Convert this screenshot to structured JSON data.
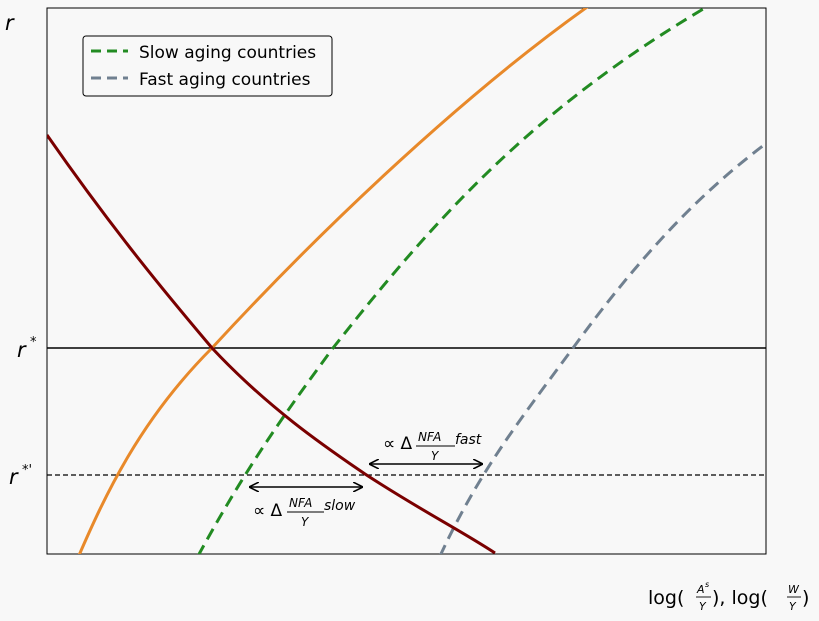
{
  "legend": {
    "slow": "Slow aging countries",
    "fast": "Fast aging countries"
  },
  "axes": {
    "y_label": "r",
    "x_label": {
      "prefix": "log(",
      "part1_num": "A",
      "part1_sup": "s",
      "den": "Y",
      "sep": "), log(",
      "part2_num": "W",
      "suffix": ")"
    },
    "r_star": {
      "base": "r",
      "sup": "*"
    },
    "r_star_prime": {
      "base": "r",
      "sup": "*'"
    }
  },
  "annotations": {
    "fast": {
      "prefix": "∝ Δ",
      "num": "NFA",
      "den": "Y",
      "suffix": "fast"
    },
    "slow": {
      "prefix": "∝ Δ",
      "num": "NFA",
      "den": "Y",
      "suffix": "slow"
    }
  },
  "colors": {
    "demand_curve": "#7a0000",
    "supply_curve": "#e8892a",
    "slow_curve": "#228b22",
    "fast_curve": "#708090",
    "background": "#f8f8f8",
    "axis": "#000000"
  }
}
